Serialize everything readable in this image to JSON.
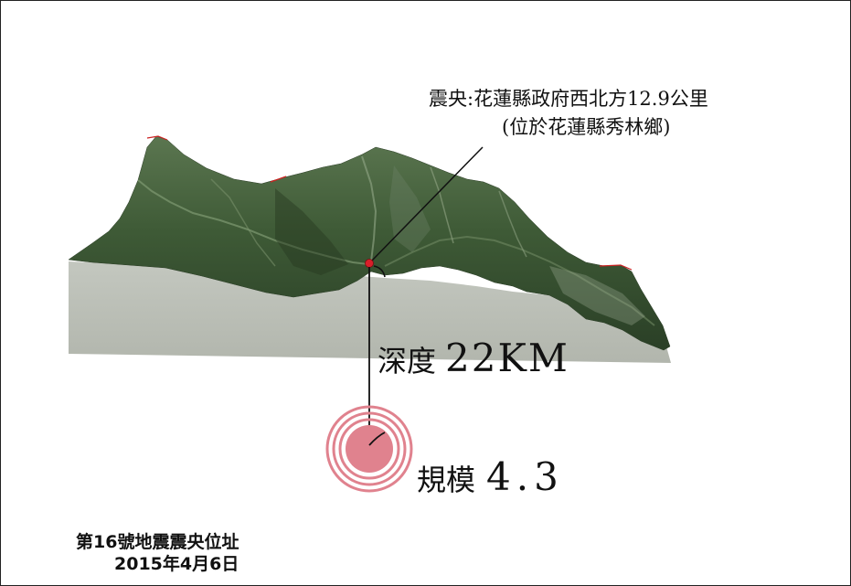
{
  "epicenter": {
    "line1": "震央:花蓮縣政府西北方12.9公里",
    "line2": "(位於花蓮縣秀林鄉)",
    "marker_color": "#d81f2a"
  },
  "depth": {
    "label": "深度",
    "value": "22KM"
  },
  "magnitude": {
    "label": "規模",
    "value": "4.3",
    "ring_color": "#e0828e"
  },
  "caption": {
    "line1": "第16號地震震央位址",
    "line2": "2015年4月6日"
  },
  "colors": {
    "terrain_dark": "#2f4a2a",
    "terrain_mid": "#4f6d45",
    "terrain_light": "#8fa283",
    "ground_block": "#b9bdb5"
  }
}
